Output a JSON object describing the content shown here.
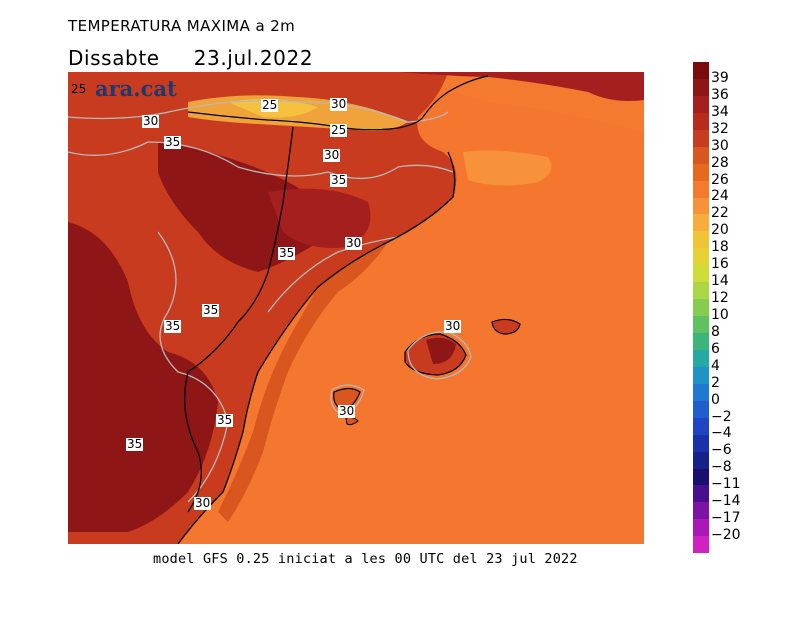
{
  "header": {
    "title": "TEMPERATURA MAXIMA a 2m",
    "day": "Dissabte",
    "date": "23.jul.2022"
  },
  "brand": {
    "name": "ara.cat",
    "label": "25"
  },
  "map": {
    "region": "Catalunya, Illes Balears i costa est peninsular",
    "contour_labels": [
      "25",
      "30",
      "25",
      "30",
      "35",
      "30",
      "35",
      "30",
      "35",
      "35",
      "30",
      "35",
      "35",
      "30",
      "30"
    ],
    "colors": {
      "sea": "#f5762e",
      "sea_warm": "#f37a2f",
      "sea_cool": "#f7923a",
      "land_hot": "#c83b1f",
      "land_very_hot": "#8e1616",
      "land_mild": "#d9561f",
      "pyrenees_cool": "#f6b03e",
      "border": "#000000",
      "contour": "#b8b8b8"
    }
  },
  "caption": "model GFS 0.25 iniciat a les 00 UTC del 23 jul 2022",
  "colorbar": {
    "ticks": [
      "39",
      "36",
      "34",
      "32",
      "30",
      "28",
      "26",
      "24",
      "22",
      "20",
      "18",
      "16",
      "14",
      "12",
      "10",
      "8",
      "6",
      "4",
      "2",
      "0",
      "−2",
      "−4",
      "−6",
      "−8",
      "−11",
      "−14",
      "−17",
      "−20"
    ],
    "colors": [
      "#7a0c0c",
      "#8e1616",
      "#a51f1f",
      "#b82a1c",
      "#c83b1f",
      "#d9561f",
      "#e7681f",
      "#f37a2f",
      "#f7923a",
      "#f7ad3c",
      "#f0c436",
      "#e5d336",
      "#cfdc3a",
      "#acd745",
      "#86cd4f",
      "#5fc261",
      "#3cb57c",
      "#26a8a3",
      "#1e93c6",
      "#1e78d4",
      "#1f5ece",
      "#1f45c2",
      "#1a32a8",
      "#15228a",
      "#1a0f70",
      "#4a0f8e",
      "#7c12a8",
      "#aa18b8",
      "#d022c2"
    ]
  }
}
